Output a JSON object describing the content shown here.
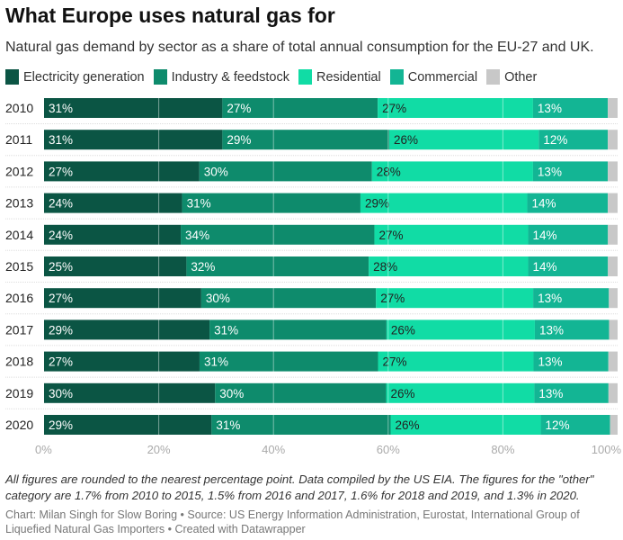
{
  "title": "What Europe uses natural gas for",
  "subtitle": "Natural gas demand by sector as a share of total annual consumption for the EU-27 and UK.",
  "notes": "All figures are rounded to the nearest percentage point. Data compiled by the US EIA. The figures for the \"other\" category are 1.7% from 2010 to 2015, 1.5% from 2016 and 2017, 1.6% for 2018 and 2019, and 1.3% in 2020.",
  "source": "Chart: Milan Singh for Slow Boring • Source: US Energy Information Administration, Eurostat, International Group of Liquefied Natural Gas Importers • Created with Datawrapper",
  "chart_data": {
    "type": "bar",
    "orientation": "horizontal-stacked-100",
    "title": "What Europe uses natural gas for",
    "categories": [
      "2010",
      "2011",
      "2012",
      "2013",
      "2014",
      "2015",
      "2016",
      "2017",
      "2018",
      "2019",
      "2020"
    ],
    "series": [
      {
        "name": "Electricity generation",
        "color": "#0b5544",
        "label_color": "#ffffff",
        "values": [
          31,
          31,
          27,
          24,
          24,
          25,
          27,
          29,
          27,
          30,
          29
        ]
      },
      {
        "name": "Industry & feedstock",
        "color": "#0e8b6c",
        "label_color": "#ffffff",
        "values": [
          27,
          29,
          30,
          31,
          34,
          32,
          30,
          31,
          31,
          30,
          31
        ]
      },
      {
        "name": "Residential",
        "color": "#11dca5",
        "label_color": "#222222",
        "values": [
          27,
          26,
          28,
          29,
          27,
          28,
          27,
          26,
          27,
          26,
          26
        ]
      },
      {
        "name": "Commercial",
        "color": "#13b594",
        "label_color": "#ffffff",
        "values": [
          13,
          12,
          13,
          14,
          14,
          14,
          13,
          13,
          13,
          13,
          12
        ]
      },
      {
        "name": "Other",
        "color": "#c8c8c8",
        "label_color": "#222222",
        "values": [
          1.7,
          1.7,
          1.7,
          1.7,
          1.7,
          1.7,
          1.5,
          1.5,
          1.6,
          1.6,
          1.3
        ],
        "show_labels": false
      }
    ],
    "x_ticks": [
      "0%",
      "20%",
      "40%",
      "60%",
      "80%",
      "100%"
    ],
    "xlim": [
      0,
      100
    ],
    "grid": true,
    "legend": "top-left"
  }
}
